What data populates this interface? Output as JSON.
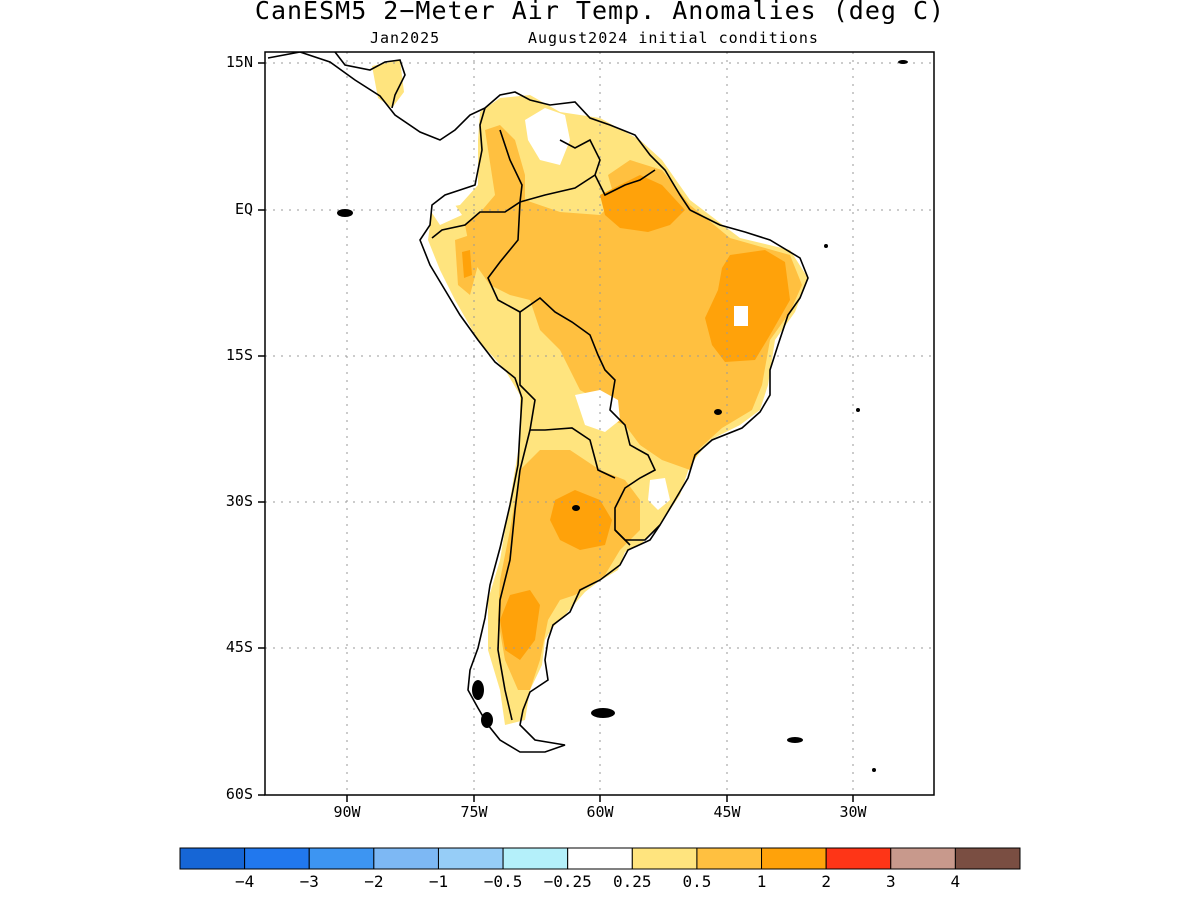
{
  "title": "CanESM5 2−Meter Air Temp. Anomalies (deg C)",
  "subtitle_left": "Jan2025",
  "subtitle_right": "August2024 initial conditions",
  "lat_labels": [
    "15N",
    "EQ",
    "15S",
    "30S",
    "45S",
    "60S"
  ],
  "lon_labels": [
    "90W",
    "75W",
    "60W",
    "45W",
    "30W"
  ],
  "colorbar": {
    "colors": [
      "#1666d6",
      "#2178ee",
      "#3d95f2",
      "#7db8f4",
      "#96cdf7",
      "#b4f0fa",
      "#ffffff",
      "#ffe47e",
      "#ffc040",
      "#ffa20a",
      "#fe3517",
      "#c8998c",
      "#7a4e42"
    ],
    "tick_labels": [
      "−4",
      "−3",
      "−2",
      "−1",
      "−0.5",
      "−0.25",
      "0.25",
      "0.5",
      "1",
      "2",
      "3",
      "4"
    ]
  },
  "legend_colors": {
    "weak_positive": "#ffe47e",
    "positive": "#ffc040",
    "strong_positive": "#ffa20a"
  }
}
